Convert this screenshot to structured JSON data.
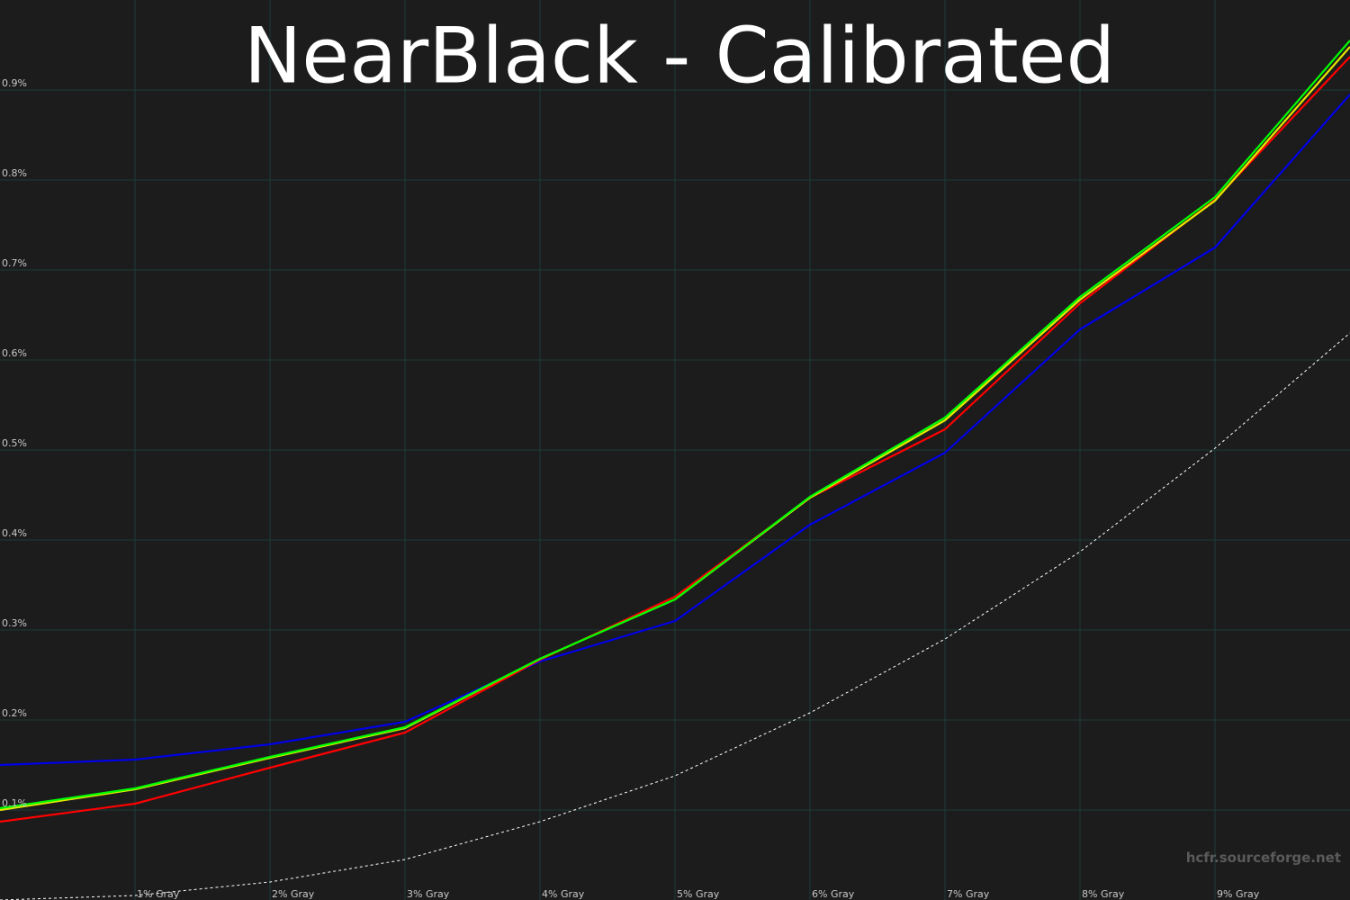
{
  "chart_data": {
    "type": "line",
    "title": "NearBlack - Calibrated",
    "watermark": "hcfr.sourceforge.net",
    "categories": [
      null,
      "1% Gray",
      "2% Gray",
      "3% Gray",
      "4% Gray",
      "5% Gray",
      "6% Gray",
      "7% Gray",
      "8% Gray",
      "9% Gray",
      null
    ],
    "series": [
      {
        "color": "#ffffff",
        "dashed": true,
        "values": [
          0,
          0.005,
          0.02,
          0.045,
          0.087,
          0.138,
          0.208,
          0.29,
          0.387,
          0.502,
          0.63
        ]
      },
      {
        "color": "#0000e6",
        "values": [
          0.15,
          0.156,
          0.173,
          0.198,
          0.265,
          0.31,
          0.417,
          0.497,
          0.634,
          0.725,
          0.895
        ]
      },
      {
        "color": "#ff0000",
        "values": [
          0.087,
          0.107,
          0.147,
          0.186,
          0.267,
          0.337,
          0.447,
          0.523,
          0.663,
          0.778,
          0.937
        ]
      },
      {
        "color": "#e6e600",
        "values": [
          0.1,
          0.123,
          0.158,
          0.191,
          0.268,
          0.334,
          0.447,
          0.533,
          0.667,
          0.777,
          0.948
        ]
      },
      {
        "color": "#00ff00",
        "values": [
          0.102,
          0.124,
          0.159,
          0.192,
          0.268,
          0.334,
          0.448,
          0.536,
          0.67,
          0.781,
          0.955
        ]
      }
    ],
    "ylim": [
      0,
      1
    ],
    "yticks": [
      {
        "value": 0.1,
        "label": "0.1%"
      },
      {
        "value": 0.2,
        "label": "0.2%"
      },
      {
        "value": 0.3,
        "label": "0.3%"
      },
      {
        "value": 0.4,
        "label": "0.4%"
      },
      {
        "value": 0.5,
        "label": "0.5%"
      },
      {
        "value": 0.6,
        "label": "0.6%"
      },
      {
        "value": 0.7,
        "label": "0.7%"
      },
      {
        "value": 0.8,
        "label": "0.8%"
      },
      {
        "value": 0.9,
        "label": "0.9%"
      }
    ],
    "grid": true,
    "grid_color": "#1e3a3a",
    "background": "#1c1c1c"
  }
}
